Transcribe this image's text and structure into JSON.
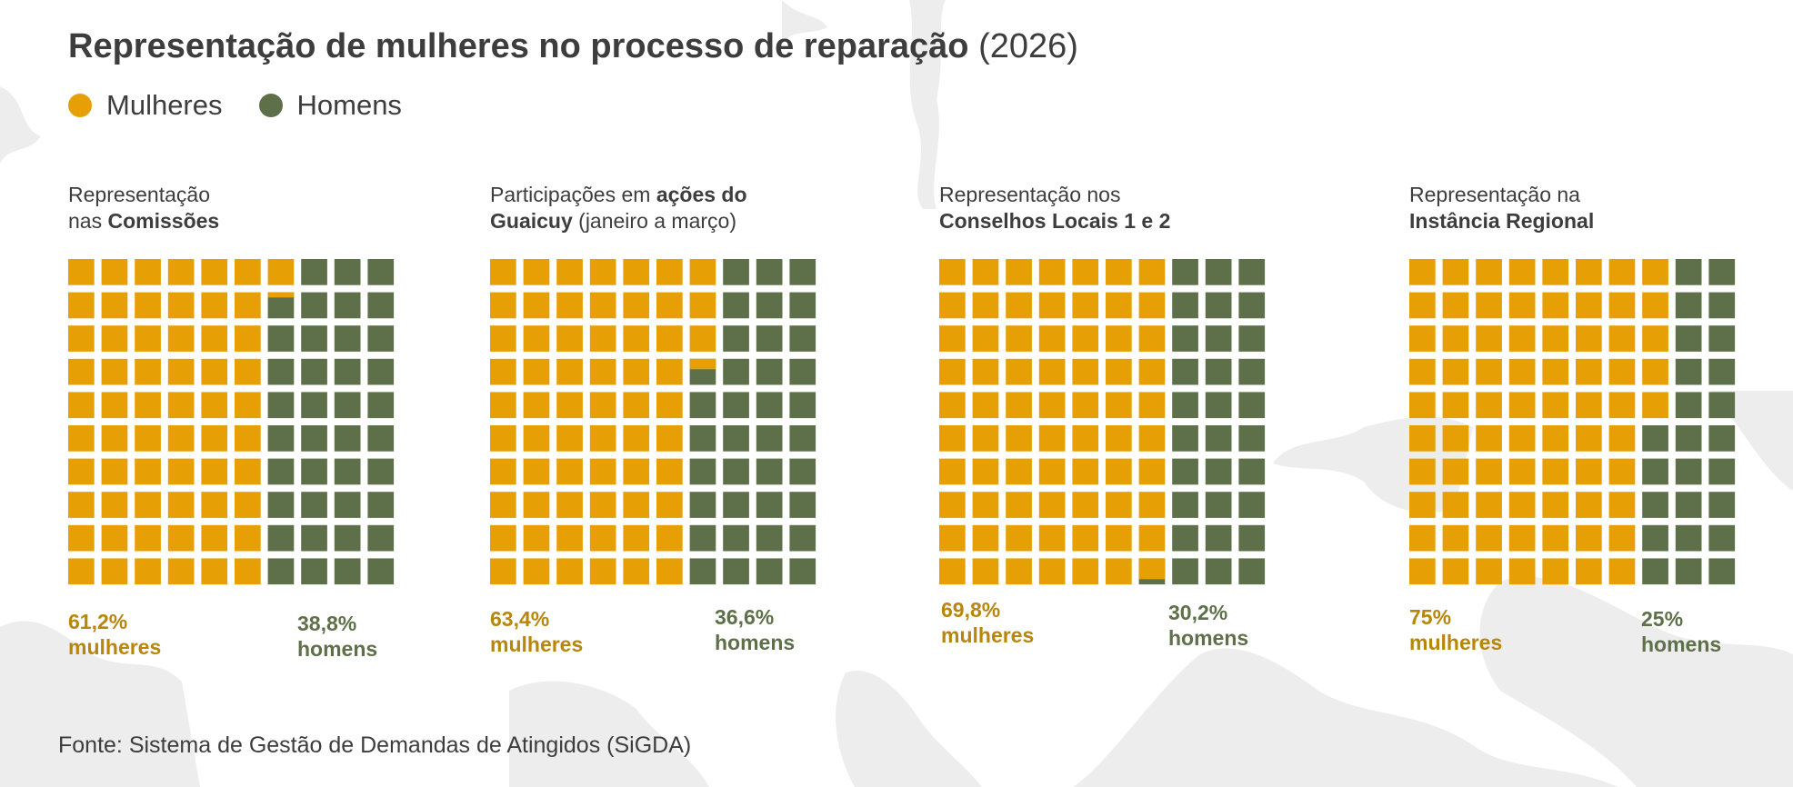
{
  "colors": {
    "women": "#e6a006",
    "men": "#5e7049",
    "women_text": "#b8860b",
    "men_text": "#5e7049"
  },
  "header": {
    "title_bold": "Representação de mulheres no processo de reparação",
    "title_year": "(2026)"
  },
  "legend": [
    {
      "label": "Mulheres",
      "color": "#e6a006"
    },
    {
      "label": "Homens",
      "color": "#5e7049"
    }
  ],
  "panels": [
    {
      "title_line1": "Representação",
      "title_line2_plain": "nas ",
      "title_line2_bold": "Comissões",
      "women_pct_label": "61,2%",
      "women_word": "mulheres",
      "men_pct_label": "38,8%",
      "men_word": "homens"
    },
    {
      "title_line1_plain": "Participações em ",
      "title_line1_bold": "ações do",
      "title_line2_bold": "Guaicuy",
      "title_line2_plain": " (janeiro a março)",
      "women_pct_label": "63,4%",
      "women_word": "mulheres",
      "men_pct_label": "36,6%",
      "men_word": "homens"
    },
    {
      "title_line1": "Representação nos",
      "title_line2_bold": "Conselhos Locais 1 e 2",
      "women_pct_label": "69,8%",
      "women_word": "mulheres",
      "men_pct_label": "30,2%",
      "men_word": "homens"
    },
    {
      "title_line1": "Representação na",
      "title_line2_bold": "Instância Regional",
      "women_pct_label": "75%",
      "women_word": "mulheres",
      "men_pct_label": "25%",
      "men_word": "homens"
    }
  ],
  "chart_data": [
    {
      "type": "waffle",
      "title": "Representação nas Comissões",
      "grid": [
        10,
        10
      ],
      "series": [
        {
          "name": "Mulheres",
          "value": 61.2
        },
        {
          "name": "Homens",
          "value": 38.8
        }
      ]
    },
    {
      "type": "waffle",
      "title": "Participações em ações do Guaicuy (janeiro a março)",
      "grid": [
        10,
        10
      ],
      "series": [
        {
          "name": "Mulheres",
          "value": 63.4
        },
        {
          "name": "Homens",
          "value": 36.6
        }
      ]
    },
    {
      "type": "waffle",
      "title": "Representação nos Conselhos Locais 1 e 2",
      "grid": [
        10,
        10
      ],
      "series": [
        {
          "name": "Mulheres",
          "value": 69.8
        },
        {
          "name": "Homens",
          "value": 30.2
        }
      ]
    },
    {
      "type": "waffle",
      "title": "Representação na Instância Regional",
      "grid": [
        10,
        10
      ],
      "series": [
        {
          "name": "Mulheres",
          "value": 75
        },
        {
          "name": "Homens",
          "value": 25
        }
      ]
    }
  ],
  "footer": {
    "source": "Fonte: Sistema de Gestão de Demandas de Atingidos (SiGDA)"
  }
}
